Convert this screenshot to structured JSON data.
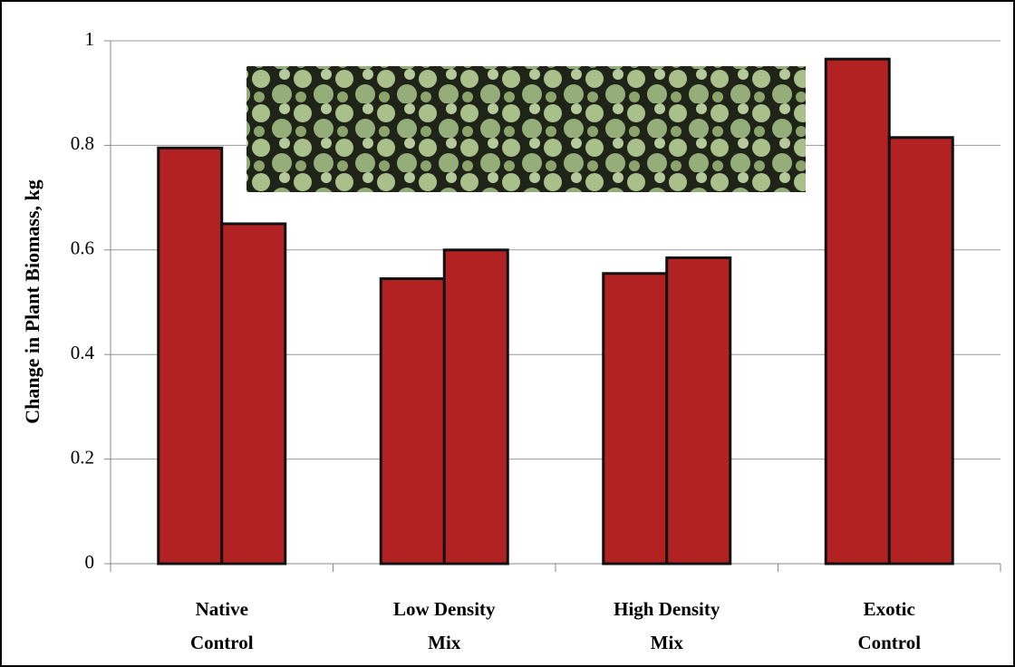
{
  "chart_data": {
    "type": "bar",
    "y_label": "Change in Plant Biomass, kg",
    "categories": [
      [
        "Native",
        "Control"
      ],
      [
        "Low Density",
        "Mix"
      ],
      [
        "High Density",
        "Mix"
      ],
      [
        "Exotic",
        "Control"
      ]
    ],
    "series": [
      {
        "color": "#b22222",
        "values": [
          0.795,
          0.545,
          0.555,
          0.965
        ]
      },
      {
        "color": "#b22222",
        "values": [
          0.65,
          0.6,
          0.585,
          0.815
        ]
      }
    ],
    "ylim": [
      0,
      1
    ],
    "yticks": [
      0,
      0.2,
      0.4,
      0.6,
      0.8,
      1
    ],
    "grid": true
  }
}
